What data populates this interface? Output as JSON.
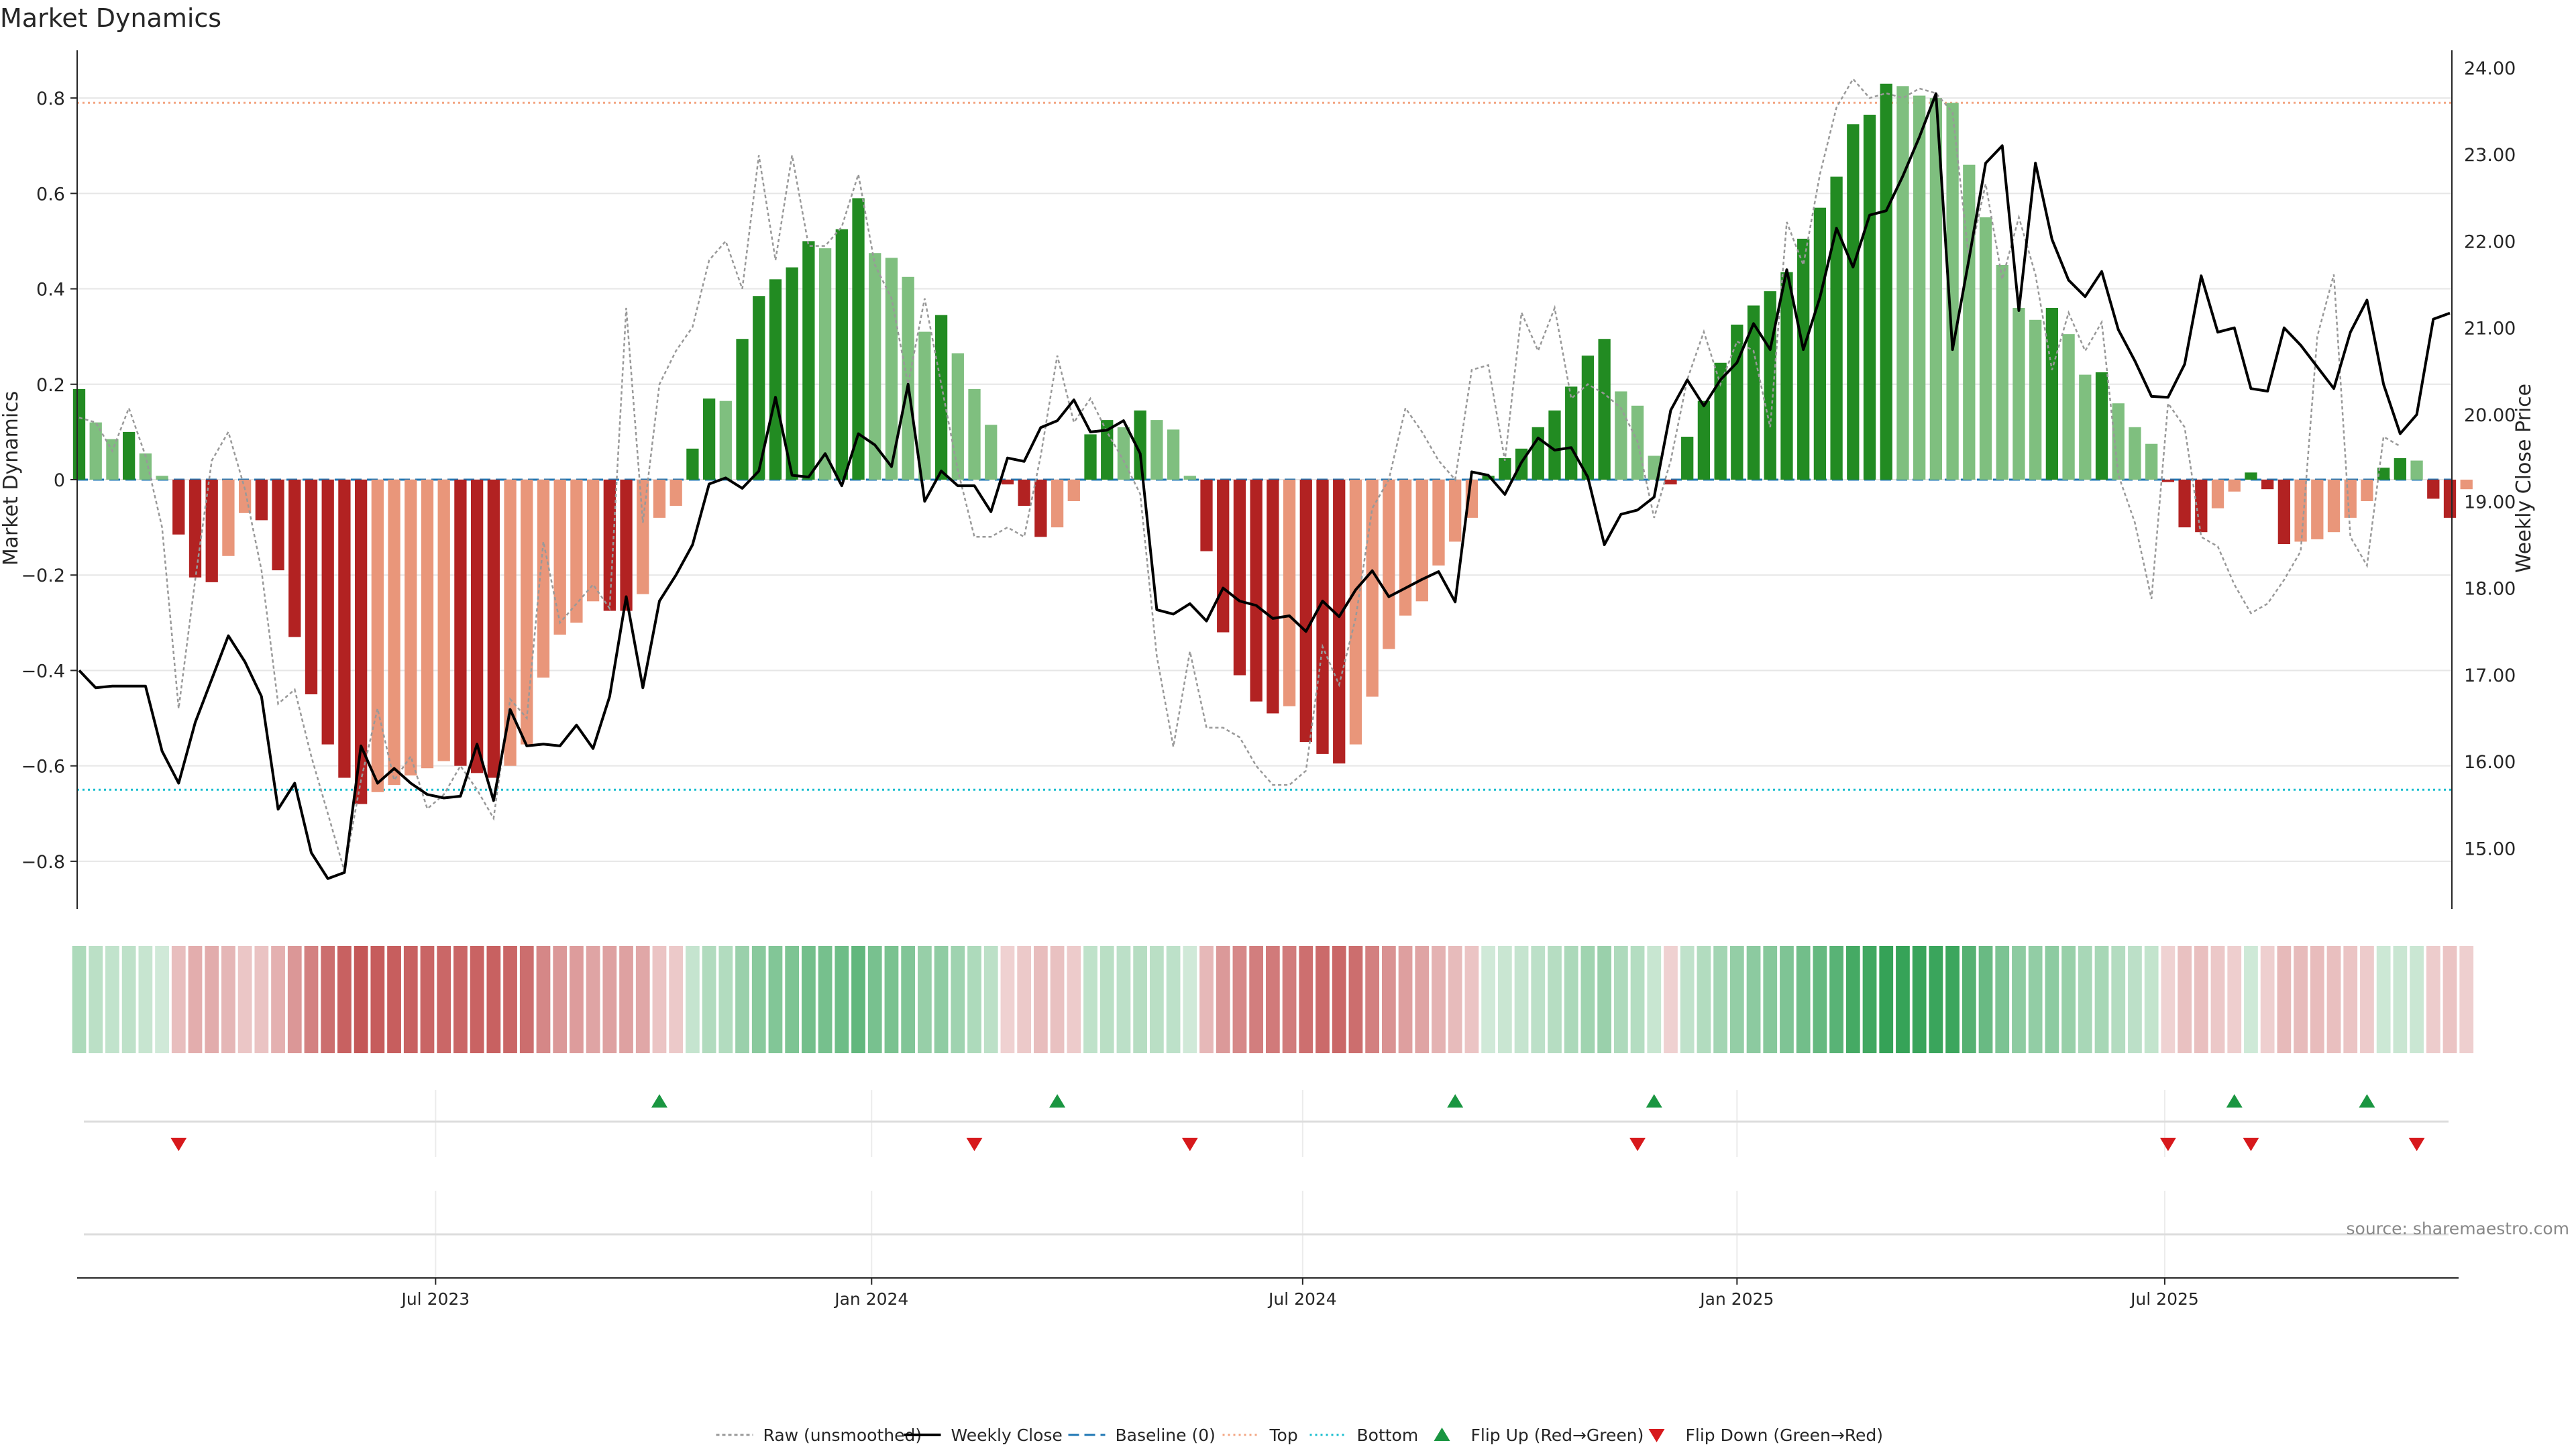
{
  "chart_data": {
    "type": "bar",
    "title": "Market Dynamics",
    "ylabel": "Market Dynamics",
    "ylabel_right": "Weekly Close Price",
    "ylim": [
      -0.9,
      0.9
    ],
    "ylim_right": [
      14.3,
      24.2
    ],
    "yticks": [
      {
        "v": 0.8,
        "label": "0.8"
      },
      {
        "v": 0.6,
        "label": "0.6"
      },
      {
        "v": 0.4,
        "label": "0.4"
      },
      {
        "v": 0.2,
        "label": "0.2"
      },
      {
        "v": 0,
        "label": "0"
      },
      {
        "v": -0.2,
        "label": "−0.2"
      },
      {
        "v": -0.4,
        "label": "−0.4"
      },
      {
        "v": -0.6,
        "label": "−0.6"
      },
      {
        "v": -0.8,
        "label": "−0.8"
      }
    ],
    "yticks_right": [
      {
        "v": 24,
        "label": "24.00"
      },
      {
        "v": 23,
        "label": "23.00"
      },
      {
        "v": 22,
        "label": "22.00"
      },
      {
        "v": 21,
        "label": "21.00"
      },
      {
        "v": 20,
        "label": "20.00"
      },
      {
        "v": 19,
        "label": "19.00"
      },
      {
        "v": 18,
        "label": "18.00"
      },
      {
        "v": 17,
        "label": "17.00"
      },
      {
        "v": 16,
        "label": "16.00"
      },
      {
        "v": 15,
        "label": "15.00"
      }
    ],
    "weeks": 144,
    "xticks": [
      {
        "week": 21.5,
        "label": "Jul 2023"
      },
      {
        "week": 47.8,
        "label": "Jan 2024"
      },
      {
        "week": 73.8,
        "label": "Jul 2024"
      },
      {
        "week": 100,
        "label": "Jan 2025"
      },
      {
        "week": 125.8,
        "label": "Jul 2025"
      }
    ],
    "top_line": 0.79,
    "bottom_line": -0.65,
    "baseline": 0,
    "colors": {
      "strong_up": "#228b22",
      "weak_up": "#7fbf7f",
      "strong_down": "#b22222",
      "weak_down": "#e9967a",
      "close": "#000000",
      "raw": "#999999",
      "baseline": "#1f77b4",
      "top": "#f4a582",
      "bottom": "#17becf",
      "flip_up": "#1a9641",
      "flip_down": "#d7191c",
      "grid": "#e6e6e6",
      "text": "#262626"
    },
    "smoothed": [
      0.19,
      0.12,
      0.085,
      0.1,
      0.055,
      0.008,
      -0.115,
      -0.205,
      -0.215,
      -0.16,
      -0.07,
      -0.085,
      -0.19,
      -0.33,
      -0.45,
      -0.555,
      -0.625,
      -0.68,
      -0.655,
      -0.64,
      -0.62,
      -0.605,
      -0.59,
      -0.6,
      -0.615,
      -0.625,
      -0.6,
      -0.555,
      -0.415,
      -0.325,
      -0.3,
      -0.255,
      -0.275,
      -0.275,
      -0.24,
      -0.08,
      -0.055,
      0.065,
      0.17,
      0.165,
      0.295,
      0.385,
      0.42,
      0.445,
      0.5,
      0.485,
      0.525,
      0.59,
      0.475,
      0.465,
      0.425,
      0.31,
      0.345,
      0.265,
      0.19,
      0.115,
      -0.01,
      -0.055,
      -0.12,
      -0.1,
      -0.045,
      0.095,
      0.125,
      0.11,
      0.145,
      0.125,
      0.105,
      0.008,
      -0.15,
      -0.32,
      -0.41,
      -0.465,
      -0.49,
      -0.475,
      -0.55,
      -0.575,
      -0.595,
      -0.555,
      -0.455,
      -0.355,
      -0.285,
      -0.255,
      -0.18,
      -0.13,
      -0.08,
      0.008,
      0.045,
      0.065,
      0.11,
      0.145,
      0.195,
      0.26,
      0.295,
      0.185,
      0.155,
      0.05,
      -0.01,
      0.09,
      0.165,
      0.245,
      0.325,
      0.365,
      0.395,
      0.435,
      0.505,
      0.57,
      0.635,
      0.745,
      0.765,
      0.83,
      0.825,
      0.805,
      0.8,
      0.79,
      0.66,
      0.55,
      0.45,
      0.36,
      0.335,
      0.36,
      0.305,
      0.22,
      0.225,
      0.16,
      0.11,
      0.075,
      -0.005,
      -0.1,
      -0.11,
      -0.06,
      -0.025,
      0.015,
      -0.02,
      -0.135,
      -0.13,
      -0.125,
      -0.11,
      -0.08,
      -0.045,
      0.025,
      0.045,
      0.04,
      -0.04,
      -0.08,
      -0.02
    ],
    "raw": [
      0.13,
      0.12,
      0.06,
      0.15,
      0.05,
      -0.1,
      -0.48,
      -0.21,
      0.04,
      0.1,
      -0.02,
      -0.19,
      -0.47,
      -0.44,
      -0.58,
      -0.7,
      -0.82,
      -0.63,
      -0.48,
      -0.63,
      -0.58,
      -0.69,
      -0.66,
      -0.6,
      -0.65,
      -0.71,
      -0.46,
      -0.5,
      -0.13,
      -0.3,
      -0.26,
      -0.22,
      -0.27,
      0.36,
      -0.09,
      0.2,
      0.27,
      0.32,
      0.46,
      0.5,
      0.4,
      0.68,
      0.46,
      0.68,
      0.49,
      0.49,
      0.53,
      0.64,
      0.45,
      0.38,
      0.2,
      0.38,
      0.2,
      0.02,
      -0.12,
      -0.12,
      -0.1,
      -0.12,
      0.05,
      0.26,
      0.12,
      0.17,
      0.1,
      0.04,
      -0.03,
      -0.37,
      -0.56,
      -0.36,
      -0.52,
      -0.52,
      -0.54,
      -0.6,
      -0.64,
      -0.64,
      -0.61,
      -0.35,
      -0.43,
      -0.29,
      -0.06,
      0,
      0.15,
      0.1,
      0.04,
      0,
      0.23,
      0.24,
      0.04,
      0.35,
      0.27,
      0.36,
      0.17,
      0.2,
      0.18,
      0.15,
      0.08,
      -0.08,
      0.04,
      0.21,
      0.31,
      0.2,
      0.29,
      0.27,
      0.11,
      0.54,
      0.45,
      0.64,
      0.78,
      0.84,
      0.8,
      0.81,
      0.8,
      0.82,
      0.81,
      0.77,
      0.46,
      0.62,
      0.42,
      0.55,
      0.43,
      0.23,
      0.35,
      0.27,
      0.33,
      0.01,
      -0.09,
      -0.25,
      0.16,
      0.11,
      -0.12,
      -0.14,
      -0.22,
      -0.28,
      -0.26,
      -0.21,
      -0.15,
      0.3,
      0.43,
      -0.12,
      -0.18,
      0.09,
      0.07
    ],
    "close": [
      17.05,
      16.85,
      16.87,
      16.87,
      16.87,
      16.12,
      15.75,
      16.45,
      16.95,
      17.45,
      17.15,
      16.75,
      15.45,
      15.75,
      14.95,
      14.65,
      14.72,
      16.18,
      15.75,
      15.92,
      15.75,
      15.62,
      15.58,
      15.6,
      16.2,
      15.55,
      16.6,
      16.18,
      16.2,
      16.18,
      16.42,
      16.15,
      16.75,
      17.9,
      16.85,
      17.85,
      18.15,
      18.5,
      19.2,
      19.27,
      19.15,
      19.35,
      20.2,
      19.3,
      19.28,
      19.55,
      19.18,
      19.78,
      19.65,
      19.4,
      20.35,
      19.0,
      19.35,
      19.18,
      19.18,
      18.88,
      19.5,
      19.46,
      19.85,
      19.93,
      20.17,
      19.8,
      19.82,
      19.93,
      19.55,
      17.75,
      17.7,
      17.82,
      17.62,
      18.0,
      17.85,
      17.8,
      17.65,
      17.68,
      17.5,
      17.85,
      17.67,
      17.98,
      18.2,
      17.9,
      18.0,
      18.1,
      18.19,
      17.84,
      19.34,
      19.3,
      19.08,
      19.45,
      19.73,
      19.59,
      19.62,
      19.28,
      18.5,
      18.85,
      18.9,
      19.05,
      20.05,
      20.4,
      20.1,
      20.4,
      20.6,
      21.05,
      20.75,
      21.67,
      20.75,
      21.35,
      22.15,
      21.7,
      22.3,
      22.35,
      22.75,
      23.2,
      23.7,
      20.75,
      21.8,
      22.9,
      23.1,
      21.2,
      22.9,
      22.02,
      21.55,
      21.36,
      21.65,
      20.98,
      20.62,
      20.21,
      20.2,
      20.58,
      21.6,
      20.95,
      21.0,
      20.3,
      20.27,
      21.0,
      20.8,
      20.55,
      20.3,
      20.95,
      21.32,
      20.35,
      19.78,
      20.0,
      21.1,
      21.17
    ],
    "flips_up": [
      35,
      59,
      83,
      95,
      130,
      138
    ],
    "flips_down": [
      6,
      54,
      67,
      94,
      126,
      131,
      141
    ],
    "legend": [
      {
        "label": "Raw (unsmoothed)",
        "kind": "dotted"
      },
      {
        "label": "Weekly Close",
        "kind": "solid"
      },
      {
        "label": "Baseline (0)",
        "kind": "dashed"
      },
      {
        "label": "Top",
        "kind": "dotted-top"
      },
      {
        "label": "Bottom",
        "kind": "dotted-bottom"
      },
      {
        "label": "Flip Up (Red→Green)",
        "kind": "tri-up"
      },
      {
        "label": "Flip Down (Green→Red)",
        "kind": "tri-down"
      }
    ],
    "source": "source: sharemaestro.com"
  }
}
